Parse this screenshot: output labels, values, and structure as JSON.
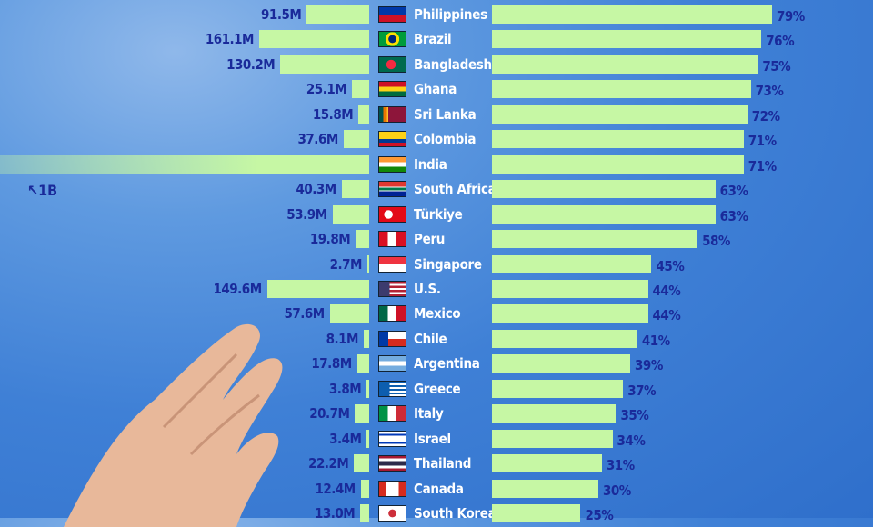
{
  "chart_data": {
    "type": "bar",
    "layout": "diverging horizontal bars",
    "categories": [
      "Philippines",
      "Brazil",
      "Bangladesh",
      "Ghana",
      "Sri Lanka",
      "Colombia",
      "India",
      "South Africa",
      "Türkiye",
      "Peru",
      "Singapore",
      "U.S.",
      "Mexico",
      "Chile",
      "Argentina",
      "Greece",
      "Italy",
      "Israel",
      "Thailand",
      "Canada",
      "South Korea"
    ],
    "series": [
      {
        "values": [
          91.5,
          161.1,
          130.2,
          25.1,
          15.8,
          37.6,
          1000,
          40.3,
          53.9,
          19.8,
          2.7,
          149.6,
          57.6,
          8.1,
          17.8,
          3.8,
          20.7,
          3.4,
          22.2,
          12.4,
          13.0
        ],
        "labels": [
          "91.5M",
          "161.1M",
          "130.2M",
          "25.1M",
          "15.8M",
          "37.6M",
          "",
          "40.3M",
          "53.9M",
          "19.8M",
          "2.7M",
          "149.6M",
          "57.6M",
          "8.1M",
          "17.8M",
          "3.8M",
          "20.7M",
          "3.4M",
          "22.2M",
          "12.4M",
          "13.0M"
        ],
        "unit": "M",
        "side": "left"
      },
      {
        "values": [
          79,
          76,
          75,
          73,
          72,
          71,
          71,
          63,
          63,
          58,
          45,
          44,
          44,
          41,
          39,
          37,
          35,
          34,
          31,
          30,
          25
        ],
        "unit": "%",
        "side": "right"
      }
    ],
    "annotation": "1B",
    "colors": {
      "bar": "#c6f7a4",
      "value_text": "#1a2a9a",
      "label_text": "#ffffff",
      "background": "#3f80d6"
    }
  },
  "flags": [
    "philippines",
    "brazil",
    "bangladesh",
    "ghana",
    "sri-lanka",
    "colombia",
    "india",
    "south-africa",
    "turkiye",
    "peru",
    "singapore",
    "us",
    "mexico",
    "chile",
    "argentina",
    "greece",
    "italy",
    "israel",
    "thailand",
    "canada",
    "south-korea"
  ]
}
